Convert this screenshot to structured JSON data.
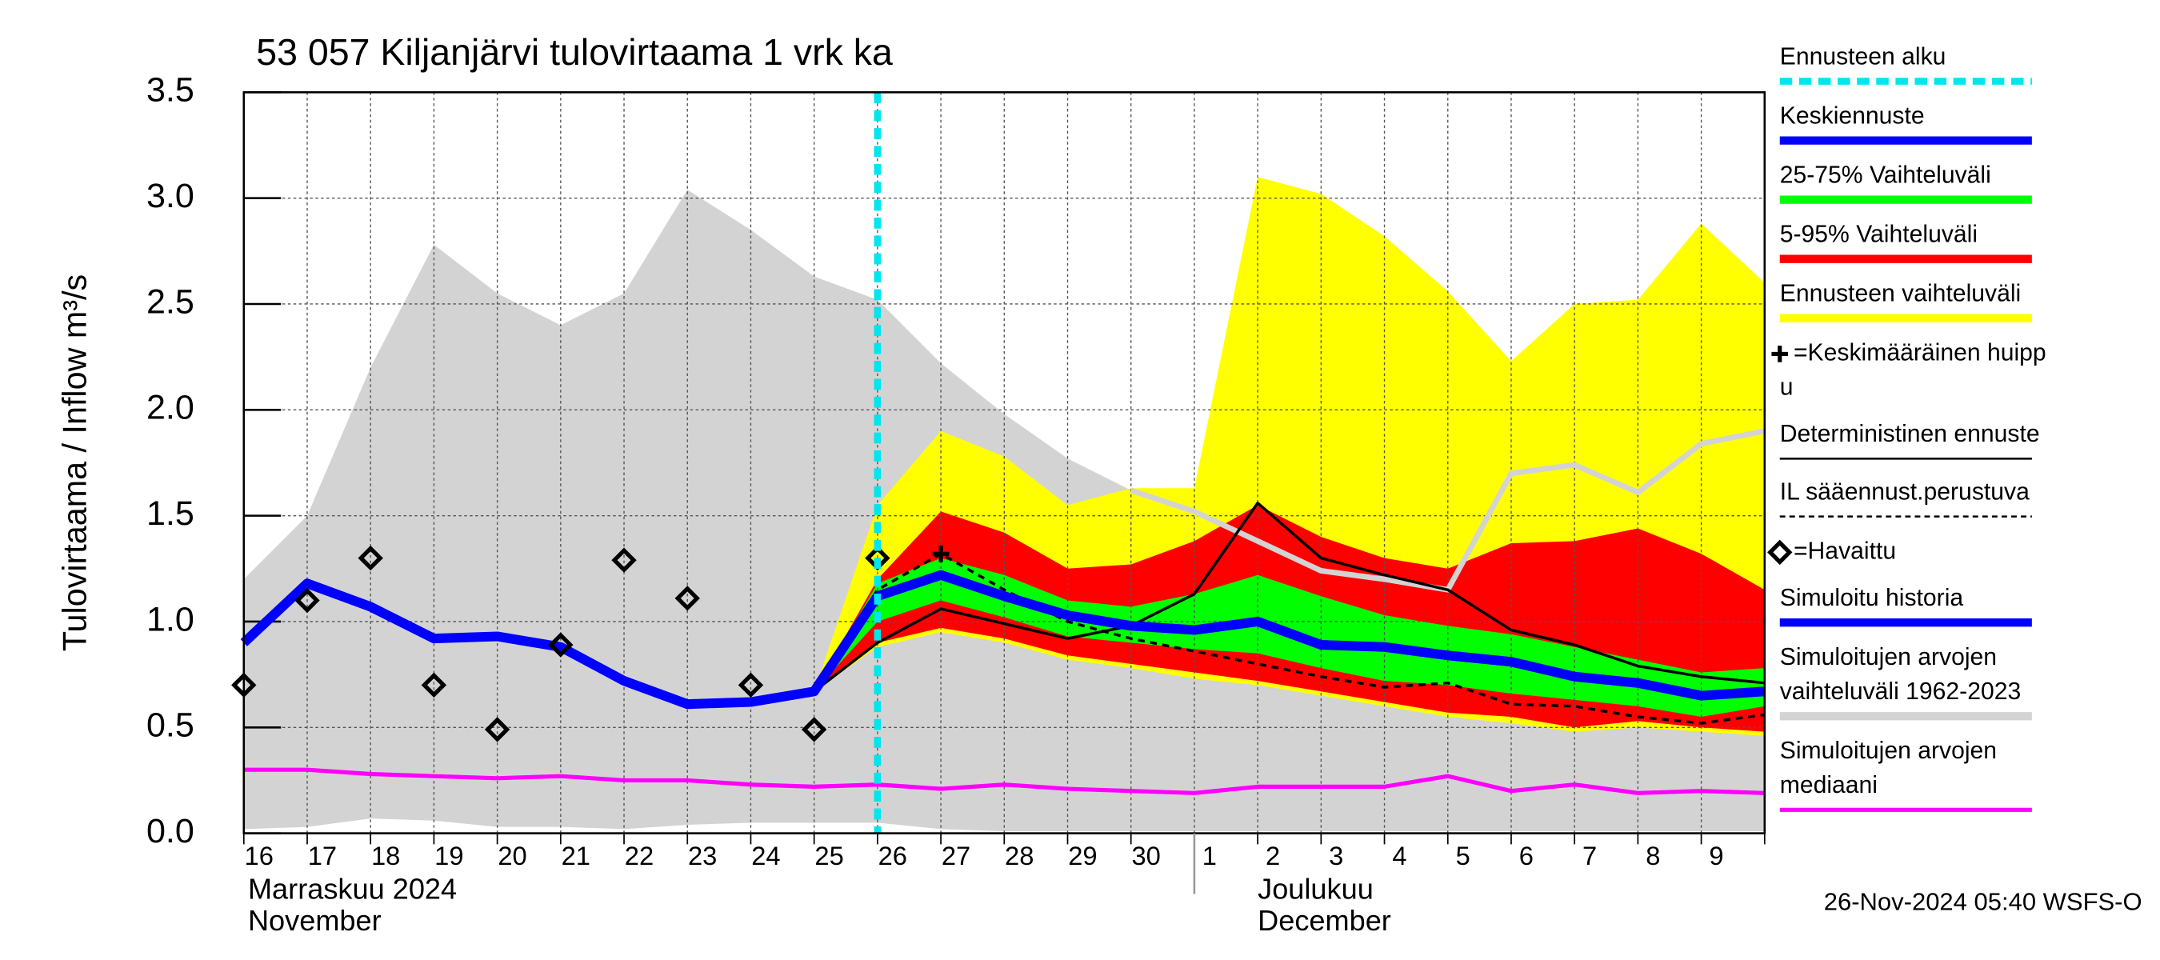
{
  "chart_data": {
    "type": "line",
    "title": "53 057 Kiljanjärvi tulovirtaama 1 vrk ka",
    "y_label": "Tulovirtaama / Inflow   m³/s",
    "month_labels": [
      [
        "Marraskuu 2024",
        "November"
      ],
      [
        "Joulukuu",
        "December"
      ]
    ],
    "footer": "26-Nov-2024 05:40 WSFS-O",
    "categories": [
      "16",
      "17",
      "18",
      "19",
      "20",
      "21",
      "22",
      "23",
      "24",
      "25",
      "26",
      "27",
      "28",
      "29",
      "30",
      "1",
      "2",
      "3",
      "4",
      "5",
      "6",
      "7",
      "8",
      "9",
      null
    ],
    "month_start_index": 15,
    "forecast_start_index": 10,
    "ylim": [
      0,
      3.5
    ],
    "yticks": [
      {
        "value": 0,
        "label": "0.0"
      },
      0.5,
      {
        "value": 1,
        "label": "1.0"
      },
      1.5,
      {
        "value": 2,
        "label": "2.0"
      },
      2.5,
      {
        "value": 3,
        "label": "3.0"
      },
      3.5
    ],
    "grid": true,
    "series": [
      {
        "kind": "band",
        "color": "#d3d3d3",
        "lower": [
          0.02,
          0.03,
          0.07,
          0.06,
          0.03,
          0.03,
          0.02,
          0.04,
          0.05,
          0.05,
          0.05,
          0.02,
          0.01,
          0.01,
          0.01,
          0.01,
          0.01,
          0.01,
          0.01,
          0.01,
          0.01,
          0.01,
          0.01,
          0.01,
          0.01
        ],
        "upper": [
          1.2,
          1.5,
          2.2,
          2.78,
          2.55,
          2.4,
          2.55,
          3.04,
          2.85,
          2.63,
          2.52,
          2.22,
          1.98,
          1.77,
          1.62,
          1.52,
          1.38,
          1.24,
          1.2,
          1.15,
          1.7,
          1.74,
          1.61,
          1.84,
          1.9
        ]
      },
      {
        "kind": "band",
        "color": "#ffff00",
        "lower": [
          null,
          null,
          null,
          null,
          null,
          null,
          null,
          null,
          null,
          0.67,
          0.88,
          0.95,
          0.9,
          0.82,
          0.78,
          0.73,
          0.7,
          0.65,
          0.6,
          0.55,
          0.52,
          0.48,
          0.5,
          0.48,
          0.46
        ],
        "upper": [
          null,
          null,
          null,
          null,
          null,
          null,
          null,
          null,
          null,
          0.67,
          1.55,
          1.9,
          1.78,
          1.55,
          1.63,
          1.63,
          3.1,
          3.02,
          2.82,
          2.56,
          2.23,
          2.5,
          2.52,
          2.88,
          2.6
        ]
      },
      {
        "kind": "line",
        "color": "#d3d3d3",
        "width": 4,
        "values": [
          null,
          null,
          null,
          null,
          null,
          null,
          null,
          null,
          null,
          null,
          null,
          null,
          null,
          null,
          1.62,
          1.52,
          1.38,
          1.24,
          1.2,
          1.15,
          1.7,
          1.74,
          1.61,
          1.84,
          1.9
        ]
      },
      {
        "kind": "band",
        "color": "#ff0000",
        "lower": [
          null,
          null,
          null,
          null,
          null,
          null,
          null,
          null,
          null,
          0.67,
          0.9,
          0.97,
          0.92,
          0.84,
          0.8,
          0.76,
          0.72,
          0.67,
          0.62,
          0.57,
          0.55,
          0.5,
          0.53,
          0.5,
          0.48
        ],
        "upper": [
          null,
          null,
          null,
          null,
          null,
          null,
          null,
          null,
          null,
          0.67,
          1.2,
          1.52,
          1.42,
          1.25,
          1.27,
          1.38,
          1.55,
          1.4,
          1.3,
          1.25,
          1.37,
          1.38,
          1.44,
          1.32,
          1.15
        ]
      },
      {
        "kind": "band",
        "color": "#00ff00",
        "lower": [
          null,
          null,
          null,
          null,
          null,
          null,
          null,
          null,
          null,
          0.67,
          1.0,
          1.1,
          1.02,
          0.93,
          0.9,
          0.87,
          0.85,
          0.78,
          0.72,
          0.7,
          0.66,
          0.63,
          0.6,
          0.55,
          0.6
        ],
        "upper": [
          null,
          null,
          null,
          null,
          null,
          null,
          null,
          null,
          null,
          0.67,
          1.18,
          1.3,
          1.22,
          1.1,
          1.07,
          1.13,
          1.22,
          1.12,
          1.03,
          0.98,
          0.94,
          0.88,
          0.82,
          0.76,
          0.78
        ]
      },
      {
        "kind": "line",
        "color": "#ff00ff",
        "width": 3,
        "values": [
          0.3,
          0.3,
          0.28,
          0.27,
          0.26,
          0.27,
          0.25,
          0.25,
          0.23,
          0.22,
          0.23,
          0.21,
          0.23,
          0.21,
          0.2,
          0.19,
          0.22,
          0.22,
          0.22,
          0.27,
          0.2,
          0.23,
          0.19,
          0.2,
          0.19
        ]
      },
      {
        "kind": "line",
        "color": "#000000",
        "width": 2,
        "values": [
          null,
          null,
          null,
          null,
          null,
          null,
          null,
          null,
          null,
          0.67,
          0.9,
          1.06,
          0.99,
          0.92,
          0.98,
          1.13,
          1.56,
          1.3,
          1.22,
          1.15,
          0.96,
          0.89,
          0.79,
          0.74,
          0.71
        ]
      },
      {
        "kind": "line",
        "color": "#000000",
        "width": 2,
        "dashed": true,
        "values": [
          null,
          null,
          null,
          null,
          null,
          null,
          null,
          null,
          null,
          0.67,
          1.15,
          1.32,
          1.15,
          1.0,
          0.92,
          0.86,
          0.8,
          0.74,
          0.69,
          0.71,
          0.61,
          0.6,
          0.55,
          0.52,
          0.56
        ]
      },
      {
        "kind": "line",
        "color": "#0000ff",
        "width": 7,
        "values": [
          0.9,
          1.18,
          1.07,
          0.92,
          0.93,
          0.88,
          0.72,
          0.61,
          0.62,
          0.67,
          1.12,
          null,
          null,
          null,
          null,
          null,
          null,
          null,
          null,
          null,
          null,
          null,
          null,
          null,
          null
        ]
      },
      {
        "kind": "line",
        "color": "#0000ff",
        "width": 7,
        "values": [
          null,
          null,
          null,
          null,
          null,
          null,
          null,
          null,
          null,
          null,
          1.12,
          1.22,
          1.12,
          1.03,
          0.98,
          0.96,
          1.0,
          0.89,
          0.88,
          0.84,
          0.81,
          0.74,
          0.71,
          0.65,
          0.67
        ]
      },
      {
        "kind": "diamond",
        "color": "#000000",
        "values": [
          0.7,
          1.1,
          1.3,
          0.7,
          0.49,
          0.89,
          1.29,
          1.11,
          0.7,
          0.49,
          1.3,
          null,
          null,
          null,
          null,
          null,
          null,
          null,
          null,
          null,
          null,
          null,
          null,
          null,
          null
        ]
      },
      {
        "kind": "cross",
        "color": "#000000",
        "values": [
          null,
          null,
          null,
          null,
          null,
          null,
          null,
          null,
          null,
          null,
          null,
          1.32,
          null,
          null,
          null,
          null,
          null,
          null,
          null,
          null,
          null,
          null,
          null,
          null,
          null
        ]
      }
    ],
    "legend": [
      {
        "lines": [
          "Ennusteen alku"
        ],
        "symbol": "dashed",
        "color": "#00e5ee"
      },
      {
        "lines": [
          "Keskiennuste"
        ],
        "symbol": "thick",
        "color": "#0000ff"
      },
      {
        "lines": [
          "25-75% Vaihteluväli"
        ],
        "symbol": "thick",
        "color": "#00ff00"
      },
      {
        "lines": [
          "5-95% Vaihteluväli"
        ],
        "symbol": "thick",
        "color": "#ff0000"
      },
      {
        "lines": [
          "Ennusteen vaihteluväli"
        ],
        "symbol": "thick",
        "color": "#ffff00"
      },
      {
        "lines": [
          "=Keskimääräinen huipp",
          "u"
        ],
        "symbol": "cross",
        "color": "#000000"
      },
      {
        "lines": [
          "Deterministinen ennuste"
        ],
        "symbol": "thin",
        "color": "#000000"
      },
      {
        "lines": [
          "IL sääennust.perustuva"
        ],
        "symbol": "dotted",
        "color": "#000000"
      },
      {
        "lines": [
          "=Havaittu"
        ],
        "symbol": "diamond",
        "color": "#000000"
      },
      {
        "lines": [
          "Simuloitu historia"
        ],
        "symbol": "thick",
        "color": "#0000ff"
      },
      {
        "lines": [
          "Simuloitujen arvojen",
          "vaihteluväli 1962-2023"
        ],
        "symbol": "thick",
        "color": "#d3d3d3"
      },
      {
        "lines": [
          "Simuloitujen arvojen",
          "mediaani"
        ],
        "symbol": "mid",
        "color": "#ff00ff"
      }
    ]
  }
}
